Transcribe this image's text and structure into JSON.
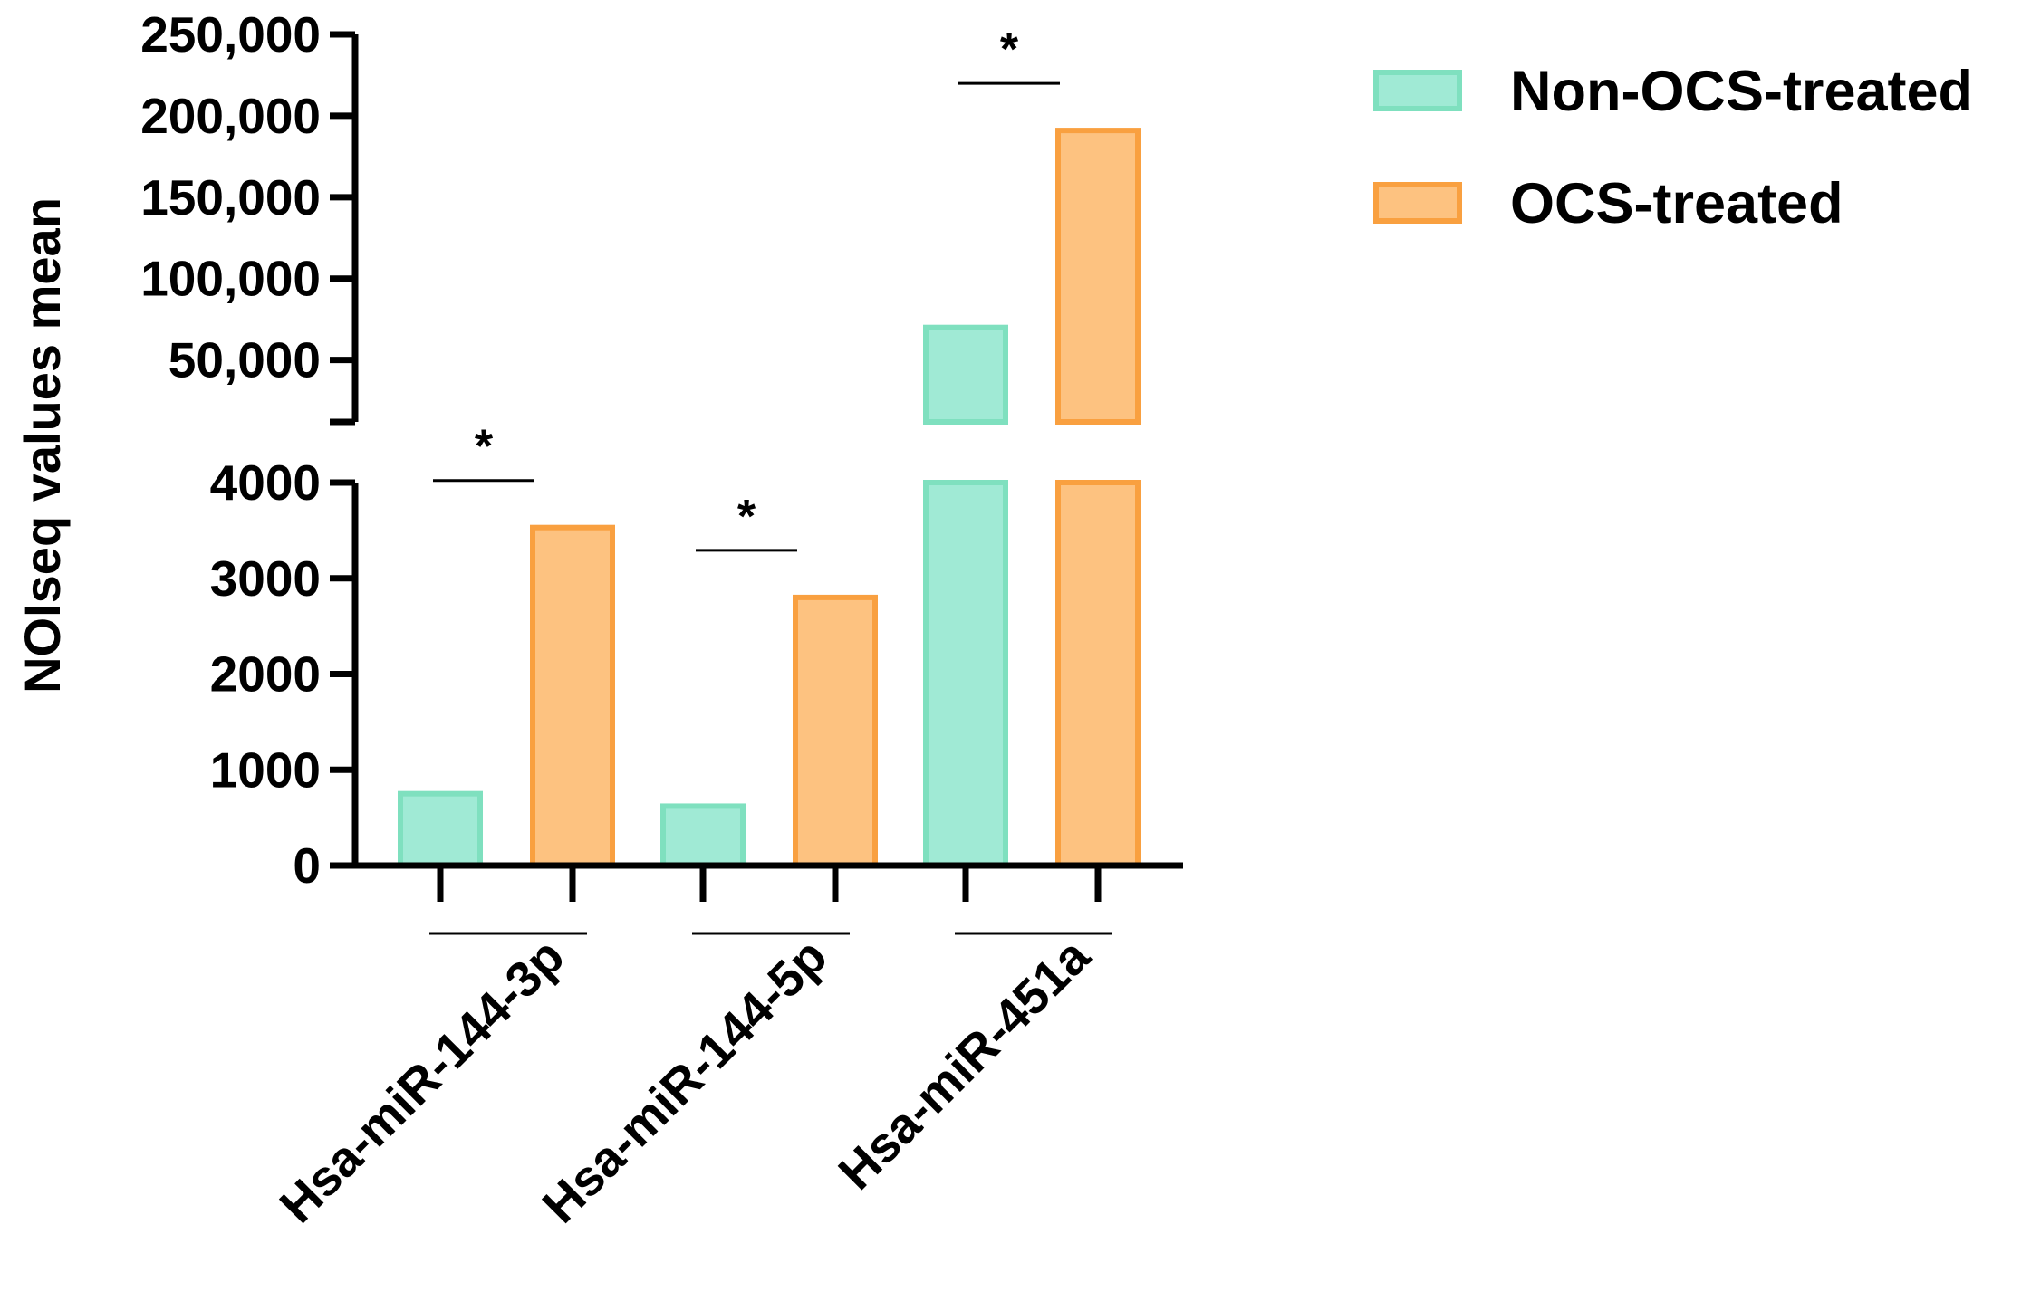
{
  "chart_data": {
    "type": "bar",
    "ylabel": "NOIseq values mean",
    "categories": [
      "Hsa-miR-144-3p",
      "Hsa-miR-144-5p",
      "Hsa-miR-451a"
    ],
    "series": [
      {
        "name": "Non-OCS-treated",
        "values": [
          750,
          620,
          70000
        ],
        "fill": "#a0ead5",
        "stroke": "#7fe0bf"
      },
      {
        "name": "OCS-treated",
        "values": [
          3530,
          2800,
          191000
        ],
        "fill": "#fdc280",
        "stroke": "#f9a040"
      }
    ],
    "y_axis_lower": {
      "range": [
        0,
        4000
      ],
      "ticks": [
        0,
        1000,
        2000,
        3000,
        4000
      ],
      "tick_labels": [
        "0",
        "1000",
        "2000",
        "3000",
        "4000"
      ]
    },
    "y_axis_upper": {
      "range": [
        12000,
        250000
      ],
      "ticks": [
        50000,
        100000,
        150000,
        200000,
        250000
      ],
      "tick_labels": [
        "50,000",
        "100,000",
        "150,000",
        "200,000",
        "250,000"
      ]
    },
    "significance": [
      {
        "category": "Hsa-miR-144-3p",
        "label": "*"
      },
      {
        "category": "Hsa-miR-144-5p",
        "label": "*"
      },
      {
        "category": "Hsa-miR-451a",
        "label": "*"
      }
    ],
    "legend_position": "top-right"
  }
}
